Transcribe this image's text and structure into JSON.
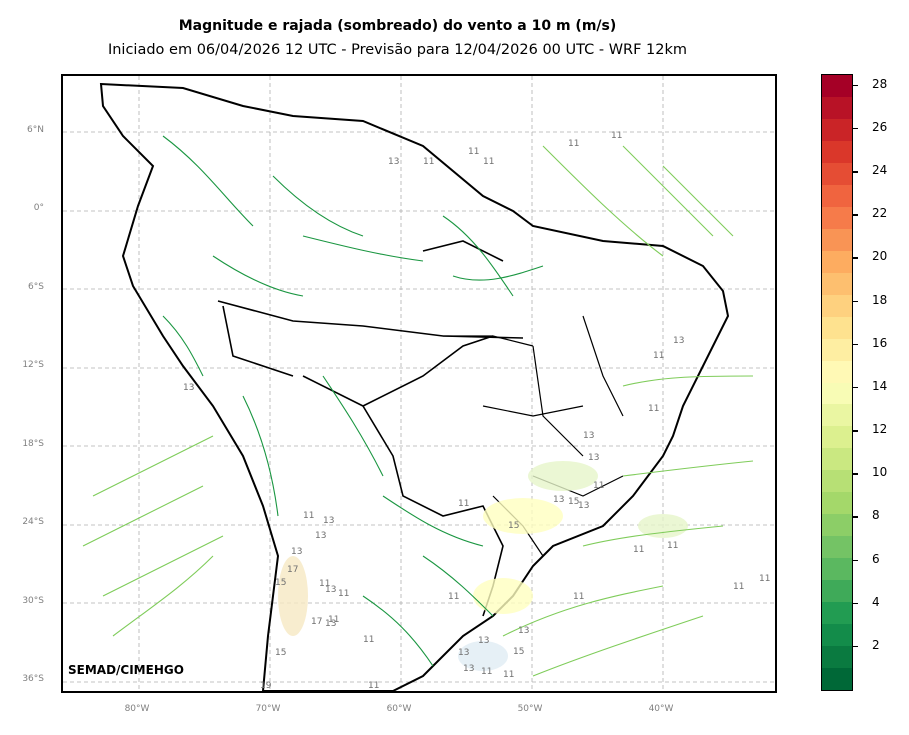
{
  "title": "Magnitude e rajada (sombreado) do vento a 10 m (m/s)",
  "subtitle": "Iniciado em 06/04/2026 12 UTC - Previsão para 12/04/2026 00 UTC - WRF 12km",
  "credit": "SEMAD/CIMEHGO",
  "map": {
    "grid": "dashed",
    "lat_labels": [
      "6°N",
      "0°",
      "6°S",
      "12°S",
      "18°S",
      "24°S",
      "30°S",
      "36°S"
    ],
    "lon_labels": [
      "80°W",
      "70°W",
      "60°W",
      "50°W",
      "40°W"
    ],
    "contour_labels": [
      "11",
      "13",
      "15",
      "17",
      "19"
    ],
    "colors": {
      "streamline_dark": "#1a9641",
      "streamline_light": "#7fcc5a",
      "grid": "#b0b0b0",
      "boundary": "#000000"
    }
  },
  "colorbar": {
    "ticks": [
      "2",
      "4",
      "6",
      "8",
      "10",
      "12",
      "14",
      "16",
      "18",
      "20",
      "22",
      "24",
      "26",
      "28"
    ],
    "range": [
      0,
      28.5
    ],
    "colors": [
      "#006837",
      "#1a9850",
      "#66bd63",
      "#a6d96a",
      "#d9ef8b",
      "#ffffbf",
      "#fee08b",
      "#fdae61",
      "#f46d43",
      "#d73027",
      "#a50026"
    ]
  }
}
